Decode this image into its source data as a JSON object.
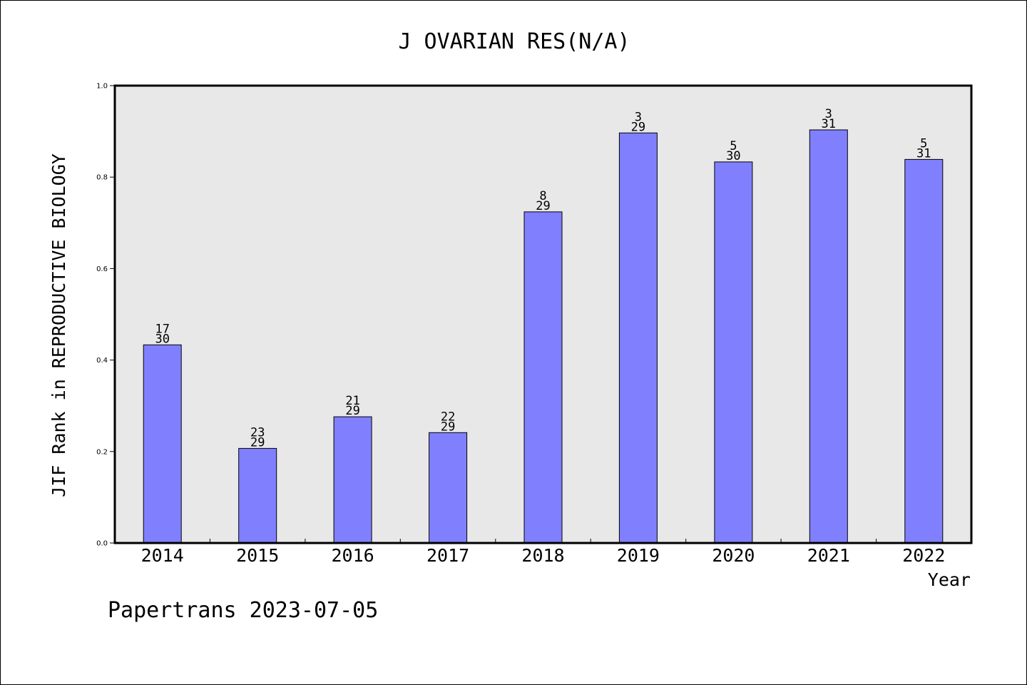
{
  "chart_data": {
    "type": "bar",
    "title": "J OVARIAN RES(N/A)",
    "xlabel": "Year",
    "ylabel": "JIF Rank in REPRODUCTIVE BIOLOGY",
    "categories": [
      "2014",
      "2015",
      "2016",
      "2017",
      "2018",
      "2019",
      "2020",
      "2021",
      "2022"
    ],
    "values": [
      0.4333,
      0.2069,
      0.2759,
      0.2414,
      0.7241,
      0.8966,
      0.8333,
      0.9032,
      0.8387
    ],
    "ranks": [
      "17",
      "23",
      "21",
      "22",
      "8",
      "3",
      "5",
      "3",
      "5"
    ],
    "totals": [
      "30",
      "29",
      "29",
      "29",
      "29",
      "29",
      "30",
      "31",
      "31"
    ],
    "ylim": [
      0,
      1
    ],
    "yticks": [
      "0.0",
      "0.2",
      "0.4",
      "0.6",
      "0.8",
      "1.0"
    ],
    "grid": false,
    "bar_color": "#8080ff",
    "plot_background": "#e8e8e8"
  },
  "footer": {
    "watermark": "Papertrans 2023-07-05"
  }
}
